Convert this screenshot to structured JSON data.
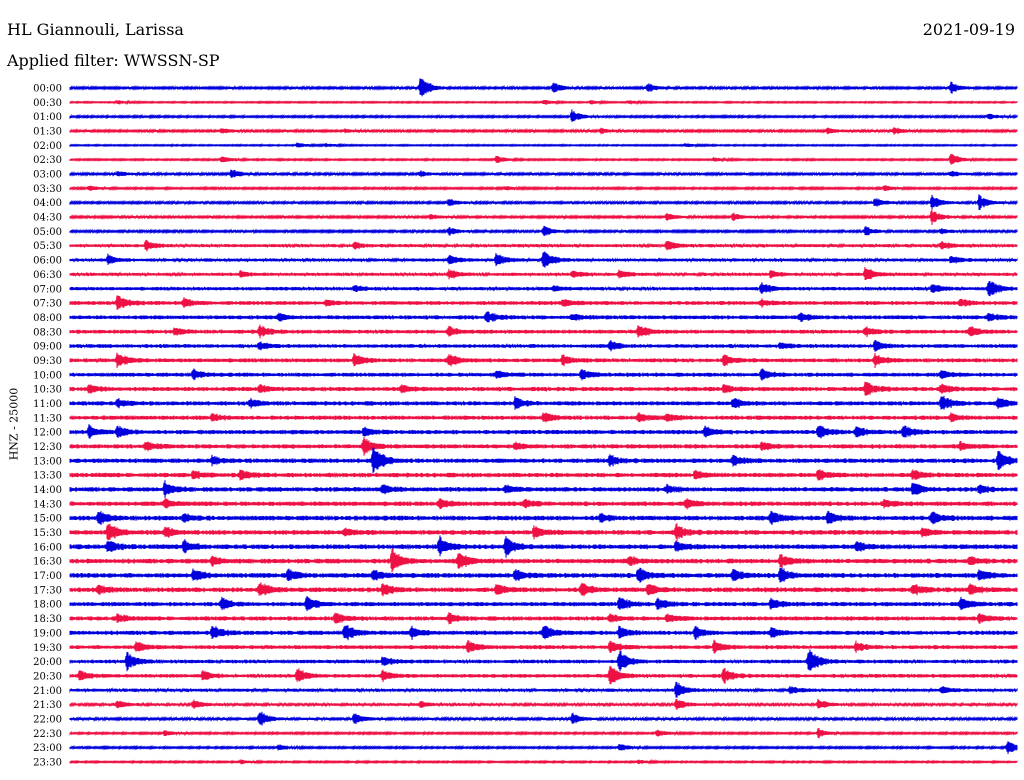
{
  "header": {
    "station": "HL Giannouli, Larissa",
    "filter": "Applied filter: WWSSN-SP",
    "date": "2021-09-19"
  },
  "colors": {
    "odd_trace": "#0000dd",
    "even_trace": "#ee1144"
  },
  "chart_data": {
    "type": "line",
    "title": "HL Giannouli, Larissa",
    "subtitle": "Applied filter: WWSSN-SP",
    "ylabel": "HNZ - 25000",
    "xlabel": "",
    "date": "2021-09-19",
    "row_labels": [
      "00:00",
      "00:30",
      "01:00",
      "01:30",
      "02:00",
      "02:30",
      "03:00",
      "03:30",
      "04:00",
      "04:30",
      "05:00",
      "05:30",
      "06:00",
      "06:30",
      "07:00",
      "07:30",
      "08:00",
      "08:30",
      "09:00",
      "09:30",
      "10:00",
      "10:30",
      "11:00",
      "11:30",
      "12:00",
      "12:30",
      "13:00",
      "13:30",
      "14:00",
      "14:30",
      "15:00",
      "15:30",
      "16:00",
      "16:30",
      "17:00",
      "17:30",
      "18:00",
      "18:30",
      "19:00",
      "19:30",
      "20:00",
      "20:30",
      "21:00",
      "21:30",
      "22:00",
      "22:30",
      "23:00",
      "23:30"
    ],
    "grid": false,
    "legend": "none",
    "series_colors": [
      "#0000dd",
      "#ee1144"
    ],
    "noise_level": [
      0.8,
      0.5,
      0.7,
      0.8,
      0.5,
      0.6,
      0.8,
      0.7,
      0.8,
      0.8,
      0.8,
      1.2,
      1.2,
      1.2,
      1.3,
      1.5,
      1.5,
      1.5,
      1.4,
      1.5,
      1.5,
      1.6,
      1.6,
      1.6,
      1.6,
      1.6,
      1.7,
      1.7,
      1.7,
      1.7,
      1.8,
      1.8,
      1.8,
      1.8,
      1.8,
      1.8,
      1.6,
      1.6,
      1.6,
      1.5,
      1.4,
      1.4,
      1.2,
      1.0,
      0.9,
      0.7,
      0.7,
      0.6
    ],
    "events": [
      [
        [
          0.37,
          14
        ],
        [
          0.51,
          6
        ],
        [
          0.61,
          5
        ],
        [
          0.93,
          6
        ]
      ],
      [
        [
          0.05,
          2
        ],
        [
          0.5,
          3
        ],
        [
          0.55,
          2
        ],
        [
          0.59,
          2
        ]
      ],
      [
        [
          0.53,
          7
        ],
        [
          0.97,
          3
        ]
      ],
      [
        [
          0.16,
          3
        ],
        [
          0.29,
          2
        ],
        [
          0.56,
          3
        ],
        [
          0.8,
          3
        ],
        [
          0.87,
          4
        ]
      ],
      [
        [
          0.24,
          3
        ],
        [
          0.27,
          2
        ],
        [
          0.65,
          2
        ]
      ],
      [
        [
          0.16,
          4
        ],
        [
          0.45,
          4
        ],
        [
          0.68,
          2
        ],
        [
          0.93,
          7
        ]
      ],
      [
        [
          0.05,
          3
        ],
        [
          0.17,
          5
        ],
        [
          0.37,
          3
        ],
        [
          0.93,
          3
        ]
      ],
      [
        [
          0.02,
          3
        ],
        [
          0.46,
          2
        ],
        [
          0.86,
          3
        ]
      ],
      [
        [
          0.4,
          4
        ],
        [
          0.85,
          5
        ],
        [
          0.91,
          8
        ],
        [
          0.96,
          8
        ]
      ],
      [
        [
          0.38,
          3
        ],
        [
          0.63,
          4
        ],
        [
          0.7,
          4
        ],
        [
          0.91,
          8
        ]
      ],
      [
        [
          0.4,
          4
        ],
        [
          0.5,
          6
        ],
        [
          0.84,
          5
        ],
        [
          0.92,
          3
        ]
      ],
      [
        [
          0.08,
          5
        ],
        [
          0.3,
          3
        ],
        [
          0.63,
          5
        ],
        [
          0.92,
          4
        ]
      ],
      [
        [
          0.04,
          5
        ],
        [
          0.4,
          5
        ],
        [
          0.45,
          7
        ],
        [
          0.5,
          10
        ],
        [
          0.93,
          4
        ]
      ],
      [
        [
          0.18,
          3
        ],
        [
          0.4,
          5
        ],
        [
          0.53,
          4
        ],
        [
          0.58,
          4
        ],
        [
          0.74,
          4
        ],
        [
          0.84,
          8
        ]
      ],
      [
        [
          0.3,
          3
        ],
        [
          0.51,
          3
        ],
        [
          0.73,
          6
        ],
        [
          0.91,
          5
        ],
        [
          0.97,
          10
        ]
      ],
      [
        [
          0.05,
          8
        ],
        [
          0.12,
          5
        ],
        [
          0.27,
          3
        ],
        [
          0.52,
          4
        ],
        [
          0.73,
          3
        ],
        [
          0.94,
          4
        ]
      ],
      [
        [
          0.22,
          4
        ],
        [
          0.44,
          6
        ],
        [
          0.53,
          3
        ],
        [
          0.77,
          4
        ],
        [
          0.97,
          4
        ]
      ],
      [
        [
          0.11,
          4
        ],
        [
          0.2,
          6
        ],
        [
          0.4,
          5
        ],
        [
          0.6,
          7
        ],
        [
          0.84,
          4
        ],
        [
          0.95,
          5
        ]
      ],
      [
        [
          0.2,
          4
        ],
        [
          0.57,
          5
        ],
        [
          0.75,
          4
        ],
        [
          0.85,
          6
        ]
      ],
      [
        [
          0.05,
          8
        ],
        [
          0.3,
          6
        ],
        [
          0.4,
          7
        ],
        [
          0.52,
          5
        ],
        [
          0.69,
          6
        ],
        [
          0.85,
          6
        ]
      ],
      [
        [
          0.13,
          5
        ],
        [
          0.45,
          4
        ],
        [
          0.54,
          5
        ],
        [
          0.73,
          6
        ],
        [
          0.92,
          4
        ]
      ],
      [
        [
          0.02,
          4
        ],
        [
          0.2,
          4
        ],
        [
          0.35,
          4
        ],
        [
          0.69,
          4
        ],
        [
          0.84,
          8
        ],
        [
          0.92,
          5
        ]
      ],
      [
        [
          0.05,
          4
        ],
        [
          0.19,
          4
        ],
        [
          0.47,
          6
        ],
        [
          0.7,
          5
        ],
        [
          0.92,
          8
        ],
        [
          0.98,
          6
        ]
      ],
      [
        [
          0.15,
          4
        ],
        [
          0.5,
          5
        ],
        [
          0.6,
          5
        ],
        [
          0.63,
          4
        ],
        [
          0.93,
          4
        ]
      ],
      [
        [
          0.02,
          6
        ],
        [
          0.05,
          6
        ],
        [
          0.31,
          4
        ],
        [
          0.67,
          6
        ],
        [
          0.79,
          7
        ],
        [
          0.83,
          6
        ],
        [
          0.88,
          7
        ]
      ],
      [
        [
          0.08,
          5
        ],
        [
          0.31,
          9
        ],
        [
          0.47,
          4
        ],
        [
          0.73,
          4
        ],
        [
          0.94,
          4
        ]
      ],
      [
        [
          0.15,
          4
        ],
        [
          0.32,
          16
        ],
        [
          0.57,
          5
        ],
        [
          0.7,
          5
        ],
        [
          0.98,
          10
        ]
      ],
      [
        [
          0.13,
          4
        ],
        [
          0.18,
          5
        ],
        [
          0.66,
          4
        ],
        [
          0.79,
          5
        ],
        [
          0.89,
          5
        ]
      ],
      [
        [
          0.1,
          8
        ],
        [
          0.33,
          5
        ],
        [
          0.46,
          4
        ],
        [
          0.63,
          4
        ],
        [
          0.89,
          8
        ],
        [
          0.96,
          4
        ]
      ],
      [
        [
          0.1,
          4
        ],
        [
          0.39,
          5
        ],
        [
          0.48,
          4
        ],
        [
          0.65,
          5
        ],
        [
          0.86,
          4
        ]
      ],
      [
        [
          0.03,
          7
        ],
        [
          0.12,
          4
        ],
        [
          0.56,
          4
        ],
        [
          0.74,
          7
        ],
        [
          0.8,
          6
        ],
        [
          0.91,
          6
        ]
      ],
      [
        [
          0.04,
          10
        ],
        [
          0.1,
          6
        ],
        [
          0.29,
          4
        ],
        [
          0.49,
          6
        ],
        [
          0.64,
          8
        ],
        [
          0.9,
          4
        ]
      ],
      [
        [
          0.04,
          6
        ],
        [
          0.12,
          7
        ],
        [
          0.39,
          10
        ],
        [
          0.46,
          9
        ],
        [
          0.64,
          6
        ],
        [
          0.83,
          5
        ]
      ],
      [
        [
          0.15,
          5
        ],
        [
          0.34,
          12
        ],
        [
          0.41,
          10
        ],
        [
          0.59,
          5
        ],
        [
          0.75,
          6
        ],
        [
          0.95,
          5
        ]
      ],
      [
        [
          0.13,
          6
        ],
        [
          0.23,
          7
        ],
        [
          0.32,
          5
        ],
        [
          0.47,
          5
        ],
        [
          0.6,
          8
        ],
        [
          0.7,
          6
        ],
        [
          0.75,
          8
        ],
        [
          0.96,
          6
        ]
      ],
      [
        [
          0.03,
          5
        ],
        [
          0.2,
          8
        ],
        [
          0.33,
          6
        ],
        [
          0.45,
          5
        ],
        [
          0.54,
          7
        ],
        [
          0.61,
          6
        ],
        [
          0.89,
          6
        ],
        [
          0.95,
          5
        ]
      ],
      [
        [
          0.16,
          6
        ],
        [
          0.25,
          8
        ],
        [
          0.58,
          8
        ],
        [
          0.62,
          6
        ],
        [
          0.74,
          6
        ],
        [
          0.94,
          7
        ]
      ],
      [
        [
          0.05,
          4
        ],
        [
          0.28,
          6
        ],
        [
          0.4,
          5
        ],
        [
          0.57,
          4
        ],
        [
          0.63,
          4
        ],
        [
          0.96,
          5
        ]
      ],
      [
        [
          0.15,
          8
        ],
        [
          0.29,
          10
        ],
        [
          0.36,
          6
        ],
        [
          0.5,
          8
        ],
        [
          0.58,
          6
        ],
        [
          0.66,
          6
        ],
        [
          0.74,
          5
        ]
      ],
      [
        [
          0.07,
          6
        ],
        [
          0.42,
          6
        ],
        [
          0.57,
          6
        ],
        [
          0.68,
          6
        ],
        [
          0.83,
          5
        ]
      ],
      [
        [
          0.06,
          9
        ],
        [
          0.33,
          5
        ],
        [
          0.58,
          12
        ],
        [
          0.78,
          14
        ]
      ],
      [
        [
          0.01,
          5
        ],
        [
          0.14,
          5
        ],
        [
          0.24,
          8
        ],
        [
          0.33,
          6
        ],
        [
          0.57,
          10
        ],
        [
          0.69,
          8
        ]
      ],
      [
        [
          0.64,
          9
        ],
        [
          0.76,
          4
        ],
        [
          0.92,
          4
        ]
      ],
      [
        [
          0.05,
          4
        ],
        [
          0.13,
          5
        ],
        [
          0.37,
          3
        ],
        [
          0.64,
          6
        ],
        [
          0.79,
          5
        ]
      ],
      [
        [
          0.2,
          9
        ],
        [
          0.3,
          6
        ],
        [
          0.53,
          6
        ]
      ],
      [
        [
          0.1,
          3
        ],
        [
          0.62,
          4
        ],
        [
          0.79,
          5
        ]
      ],
      [
        [
          0.22,
          3
        ],
        [
          0.58,
          4
        ],
        [
          0.99,
          8
        ]
      ],
      [
        [
          0.18,
          2
        ],
        [
          0.6,
          2
        ]
      ]
    ]
  }
}
